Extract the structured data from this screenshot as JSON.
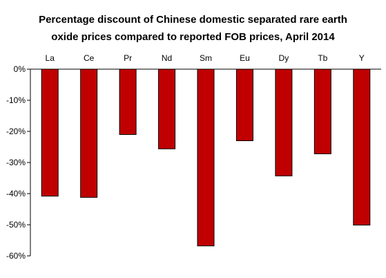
{
  "chart_data": {
    "type": "bar",
    "title_lines": [
      "Percentage discount of Chinese domestic separated rare earth",
      "oxide prices compared to reported FOB prices, April 2014"
    ],
    "categories": [
      "La",
      "Ce",
      "Pr",
      "Nd",
      "Sm",
      "Eu",
      "Dy",
      "Tb",
      "Y"
    ],
    "values": [
      -40.8,
      -41.2,
      -21.0,
      -25.6,
      -56.8,
      -23.0,
      -34.3,
      -27.2,
      -50.1
    ],
    "ylim": [
      -60,
      0
    ],
    "yticks": [
      0,
      -10,
      -20,
      -30,
      -40,
      -50,
      -60
    ],
    "ytick_labels": [
      "0%",
      "-10%",
      "-20%",
      "-30%",
      "-40%",
      "-50%",
      "-60%"
    ],
    "xlabel": "",
    "ylabel": "",
    "category_axis_position": "top",
    "legend": false,
    "grid": false,
    "bar_color": "#c00000",
    "bar_border_color": "#000000"
  }
}
